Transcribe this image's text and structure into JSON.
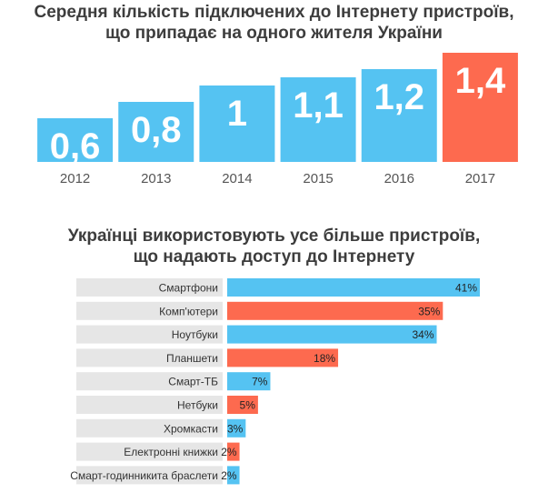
{
  "chart_data": [
    {
      "type": "bar",
      "title_lines": [
        "Середня кількість підключених до Інтернету пристроїв,",
        "що припадає на одного жителя України"
      ],
      "categories": [
        "2012",
        "2013",
        "2014",
        "2015",
        "2016",
        "2017"
      ],
      "values": [
        0.6,
        0.8,
        1,
        1.1,
        1.2,
        1.4
      ],
      "value_labels": [
        "0,6",
        "0,8",
        "1",
        "1,1",
        "1,2",
        "1,4"
      ],
      "highlight_index": 5,
      "colors": {
        "normal": "#55c3f2",
        "highlight": "#fd6a4f"
      },
      "grid": false,
      "legend": "none"
    },
    {
      "type": "bar",
      "orientation": "horizontal",
      "title_lines": [
        "Українці використовують усе більше пристроїв,",
        "що надають доступ до Інтернету"
      ],
      "categories": [
        "Смартфони",
        "Комп'ютери",
        "Ноутбуки",
        "Планшети",
        "Смарт-ТБ",
        "Нетбуки",
        "Хромкасти",
        "Електронні книжки",
        "Смарт-годинникита браслети"
      ],
      "values": [
        41,
        35,
        34,
        18,
        7,
        5,
        3,
        2,
        2
      ],
      "value_labels": [
        "41%",
        "35%",
        "34%",
        "18%",
        "7%",
        "5%",
        "3%",
        "2%",
        "2%"
      ],
      "unit": "%",
      "colors": {
        "blue": "#55c3f2",
        "orange": "#fd6a4f",
        "label_bg": "#e6e6e6"
      },
      "color_pattern": [
        "blue",
        "orange",
        "blue",
        "orange",
        "blue",
        "orange",
        "blue",
        "orange",
        "blue"
      ],
      "grid": false,
      "legend": "none"
    }
  ]
}
